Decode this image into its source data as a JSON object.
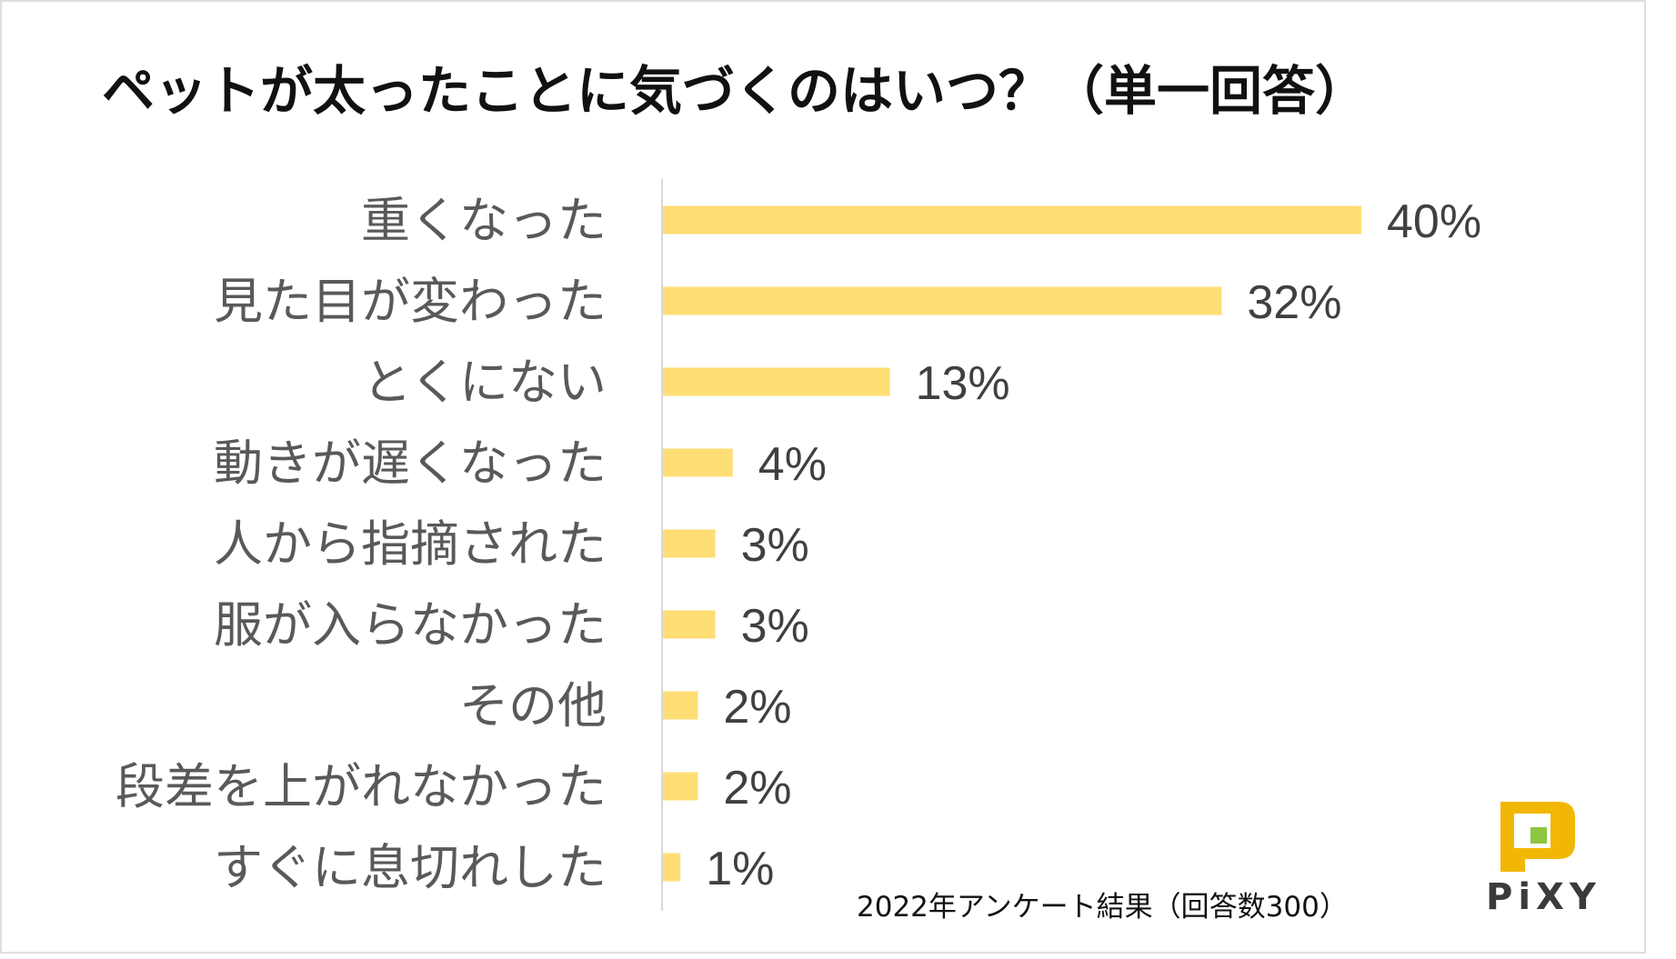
{
  "chart_data": {
    "type": "bar",
    "orientation": "horizontal",
    "title": "ペットが太ったことに気づくのはいつ？（単一回答）",
    "categories": [
      "重くなった",
      "見た目が変わった",
      "とくにない",
      "動きが遅くなった",
      "人から指摘された",
      "服が入らなかった",
      "その他",
      "段差を上がれなかった",
      "すぐに息切れした"
    ],
    "values": [
      40,
      32,
      13,
      4,
      3,
      3,
      2,
      2,
      1
    ],
    "value_labels": [
      "40%",
      "32%",
      "13%",
      "4%",
      "3%",
      "3%",
      "2%",
      "2%",
      "1%"
    ],
    "unit": "%",
    "xlim": [
      0,
      50
    ],
    "grid": false,
    "legend": "none",
    "bar_color": "#FFDE75",
    "footnote": "2022年アンケート結果（回答数300）"
  },
  "brand": {
    "name": "PiXY",
    "logo_colors": [
      "#F2B705",
      "#8DC63F"
    ]
  },
  "colors": {
    "axis": "#d9d9d9",
    "category_text": "#595959",
    "value_text": "#404040"
  }
}
